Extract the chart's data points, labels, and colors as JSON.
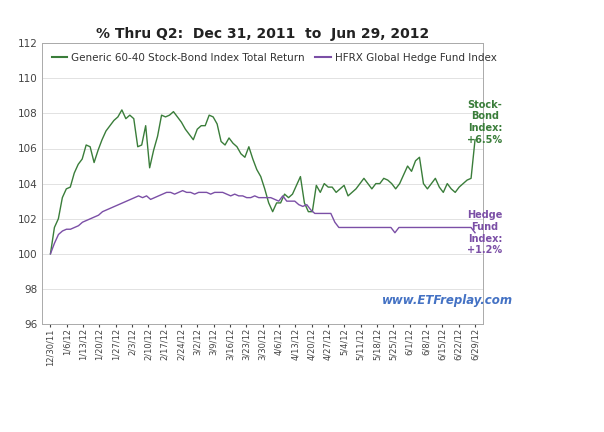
{
  "title": "% Thru Q2:  Dec 31, 2011  to  Jun 29, 2012",
  "title_fontsize": 10,
  "green_color": "#3a7d3a",
  "purple_color": "#7B4FA6",
  "background_color": "#ffffff",
  "watermark": "www.ETFreplay.com",
  "legend_green": "Generic 60-40 Stock-Bond Index Total Return",
  "legend_purple": "HFRX Global Hedge Fund Index",
  "annotation_green": "Stock-\nBond\nIndex:\n+6.5%",
  "annotation_purple": "Hedge\nFund\nIndex:\n+1.2%",
  "ylim": [
    96,
    112
  ],
  "yticks": [
    96,
    98,
    100,
    102,
    104,
    106,
    108,
    110,
    112
  ],
  "x_labels": [
    "12/30/11",
    "1/6/12",
    "1/13/12",
    "1/20/12",
    "1/27/12",
    "2/3/12",
    "2/10/12",
    "2/17/12",
    "2/24/12",
    "3/2/12",
    "3/9/12",
    "3/16/12",
    "3/23/12",
    "3/30/12",
    "4/6/12",
    "4/13/12",
    "4/20/12",
    "4/27/12",
    "5/4/12",
    "5/11/12",
    "5/18/12",
    "5/25/12",
    "6/1/12",
    "6/8/12",
    "6/15/12",
    "6/22/12",
    "6/29/12"
  ],
  "green_values": [
    100.0,
    101.5,
    102.0,
    103.2,
    103.7,
    103.8,
    104.6,
    105.1,
    105.4,
    106.2,
    106.1,
    105.2,
    105.9,
    106.5,
    107.0,
    107.3,
    107.6,
    107.8,
    108.2,
    107.7,
    107.9,
    107.7,
    106.1,
    106.2,
    107.3,
    104.9,
    105.9,
    106.7,
    107.9,
    107.8,
    107.9,
    108.1,
    107.8,
    107.5,
    107.1,
    106.8,
    106.5,
    107.1,
    107.3,
    107.3,
    107.9,
    107.8,
    107.4,
    106.4,
    106.2,
    106.6,
    106.3,
    106.1,
    105.7,
    105.5,
    106.1,
    105.4,
    104.8,
    104.4,
    103.7,
    102.9,
    102.4,
    102.9,
    102.9,
    103.4,
    103.2,
    103.4,
    103.9,
    104.4,
    102.9,
    102.4,
    102.4,
    103.9,
    103.5,
    104.0,
    103.8,
    103.8,
    103.5,
    103.7,
    103.9,
    103.3,
    103.5,
    103.7,
    104.0,
    104.3,
    104.0,
    103.7,
    104.0,
    104.0,
    104.3,
    104.2,
    104.0,
    103.7,
    104.0,
    104.5,
    105.0,
    104.7,
    105.3,
    105.5,
    104.0,
    103.7,
    104.0,
    104.3,
    103.8,
    103.5,
    104.0,
    103.7,
    103.5,
    103.8,
    104.0,
    104.2,
    104.3,
    106.5
  ],
  "purple_values": [
    100.0,
    100.6,
    101.1,
    101.3,
    101.4,
    101.4,
    101.5,
    101.6,
    101.8,
    101.9,
    102.0,
    102.1,
    102.2,
    102.4,
    102.5,
    102.6,
    102.7,
    102.8,
    102.9,
    103.0,
    103.1,
    103.2,
    103.3,
    103.2,
    103.3,
    103.1,
    103.2,
    103.3,
    103.4,
    103.5,
    103.5,
    103.4,
    103.5,
    103.6,
    103.5,
    103.5,
    103.4,
    103.5,
    103.5,
    103.5,
    103.4,
    103.5,
    103.5,
    103.5,
    103.4,
    103.3,
    103.4,
    103.3,
    103.3,
    103.2,
    103.2,
    103.3,
    103.2,
    103.2,
    103.2,
    103.2,
    103.1,
    103.0,
    103.3,
    103.0,
    103.0,
    103.0,
    102.8,
    102.7,
    102.8,
    102.5,
    102.3,
    102.3,
    102.3,
    102.3,
    102.3,
    101.8,
    101.5,
    101.5,
    101.5,
    101.5,
    101.5,
    101.5,
    101.5,
    101.5,
    101.5,
    101.5,
    101.5,
    101.5,
    101.5,
    101.5,
    101.2,
    101.5,
    101.5,
    101.5,
    101.5,
    101.5,
    101.5,
    101.5,
    101.5,
    101.5,
    101.5,
    101.5,
    101.5,
    101.5,
    101.5,
    101.5,
    101.5,
    101.5,
    101.5,
    101.5,
    101.2
  ]
}
